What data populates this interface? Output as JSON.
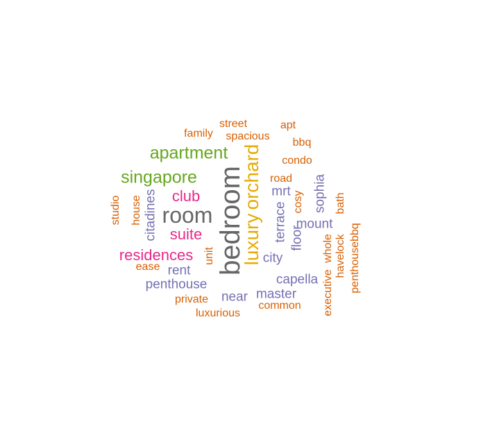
{
  "chart_data": {
    "type": "wordcloud",
    "title": "",
    "palette": {
      "orange": "#d95f02",
      "purple": "#7570b3",
      "magenta": "#e7298a",
      "green": "#66a61e",
      "yellow": "#e6ab02",
      "gray": "#666666"
    },
    "words": [
      {
        "text": "bedroom",
        "weight": 10,
        "color": "gray",
        "vertical": true
      },
      {
        "text": "room",
        "weight": 8,
        "color": "gray",
        "vertical": false
      },
      {
        "text": "luxury",
        "weight": 7,
        "color": "yellow",
        "vertical": true
      },
      {
        "text": "orchard",
        "weight": 7,
        "color": "yellow",
        "vertical": true
      },
      {
        "text": "apartment",
        "weight": 6,
        "color": "green",
        "vertical": false
      },
      {
        "text": "singapore",
        "weight": 6,
        "color": "green",
        "vertical": false
      },
      {
        "text": "suite",
        "weight": 5,
        "color": "magenta",
        "vertical": false
      },
      {
        "text": "residences",
        "weight": 5,
        "color": "magenta",
        "vertical": false
      },
      {
        "text": "club",
        "weight": 5,
        "color": "magenta",
        "vertical": false
      },
      {
        "text": "penthouse",
        "weight": 4,
        "color": "purple",
        "vertical": false
      },
      {
        "text": "rent",
        "weight": 4,
        "color": "purple",
        "vertical": false
      },
      {
        "text": "terrace",
        "weight": 4,
        "color": "purple",
        "vertical": true
      },
      {
        "text": "mrt",
        "weight": 4,
        "color": "purple",
        "vertical": false
      },
      {
        "text": "city",
        "weight": 4,
        "color": "purple",
        "vertical": false
      },
      {
        "text": "capella",
        "weight": 4,
        "color": "purple",
        "vertical": false
      },
      {
        "text": "master",
        "weight": 4,
        "color": "purple",
        "vertical": false
      },
      {
        "text": "near",
        "weight": 4,
        "color": "purple",
        "vertical": false
      },
      {
        "text": "mount",
        "weight": 4,
        "color": "purple",
        "vertical": false
      },
      {
        "text": "sophia",
        "weight": 4,
        "color": "purple",
        "vertical": true
      },
      {
        "text": "floor",
        "weight": 4,
        "color": "purple",
        "vertical": true
      },
      {
        "text": "citadines",
        "weight": 4,
        "color": "purple",
        "vertical": true
      },
      {
        "text": "family",
        "weight": 3,
        "color": "orange",
        "vertical": false
      },
      {
        "text": "street",
        "weight": 3,
        "color": "orange",
        "vertical": false
      },
      {
        "text": "spacious",
        "weight": 3,
        "color": "orange",
        "vertical": false
      },
      {
        "text": "apt",
        "weight": 3,
        "color": "orange",
        "vertical": false
      },
      {
        "text": "bbq",
        "weight": 3,
        "color": "orange",
        "vertical": false
      },
      {
        "text": "condo",
        "weight": 3,
        "color": "orange",
        "vertical": false
      },
      {
        "text": "road",
        "weight": 3,
        "color": "orange",
        "vertical": false
      },
      {
        "text": "studio",
        "weight": 3,
        "color": "orange",
        "vertical": true
      },
      {
        "text": "house",
        "weight": 3,
        "color": "orange",
        "vertical": true
      },
      {
        "text": "cosy",
        "weight": 3,
        "color": "orange",
        "vertical": true
      },
      {
        "text": "bath",
        "weight": 3,
        "color": "orange",
        "vertical": true
      },
      {
        "text": "penthousebbq",
        "weight": 3,
        "color": "orange",
        "vertical": true
      },
      {
        "text": "havelock",
        "weight": 3,
        "color": "orange",
        "vertical": true
      },
      {
        "text": "whole",
        "weight": 3,
        "color": "orange",
        "vertical": true
      },
      {
        "text": "executive",
        "weight": 3,
        "color": "orange",
        "vertical": true
      },
      {
        "text": "unit",
        "weight": 3,
        "color": "orange",
        "vertical": true
      },
      {
        "text": "ease",
        "weight": 3,
        "color": "orange",
        "vertical": false
      },
      {
        "text": "private",
        "weight": 3,
        "color": "orange",
        "vertical": false
      },
      {
        "text": "luxurious",
        "weight": 3,
        "color": "orange",
        "vertical": false
      },
      {
        "text": "common",
        "weight": 3,
        "color": "orange",
        "vertical": false
      }
    ]
  }
}
